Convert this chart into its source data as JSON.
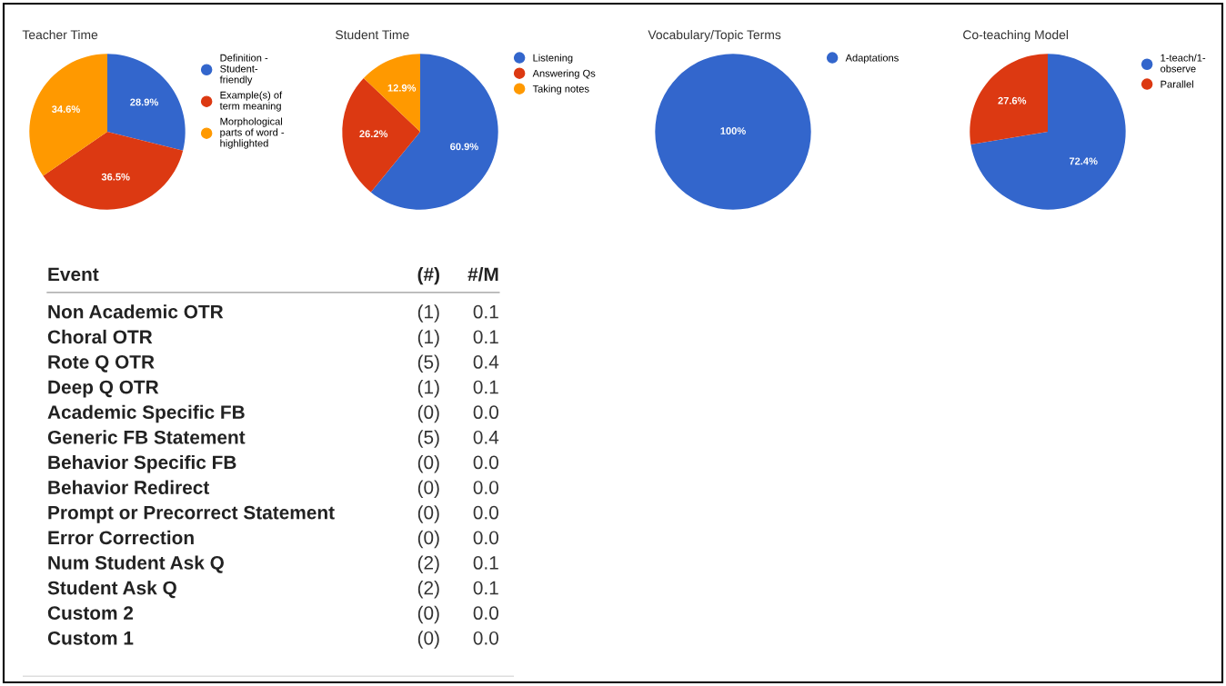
{
  "chart_data": [
    {
      "type": "pie",
      "title": "Teacher Time",
      "categories": [
        "Definition -\nStudent-\nfriendly",
        "Example(s) of\nterm meaning",
        "Morphological\nparts of word -\nhighlighted"
      ],
      "values": [
        28.9,
        36.5,
        34.6
      ],
      "value_labels": [
        "28.9%",
        "36.5%",
        "34.6%"
      ],
      "colors": [
        "#3366cc",
        "#dc3912",
        "#ff9900"
      ],
      "legend": "right"
    },
    {
      "type": "pie",
      "title": "Student Time",
      "categories": [
        "Listening",
        "Answering Qs",
        "Taking notes"
      ],
      "values": [
        60.9,
        26.2,
        12.9
      ],
      "value_labels": [
        "60.9%",
        "26.2%",
        "12.9%"
      ],
      "colors": [
        "#3366cc",
        "#dc3912",
        "#ff9900"
      ],
      "legend": "right"
    },
    {
      "type": "pie",
      "title": "Vocabulary/Topic Terms",
      "categories": [
        "Adaptations"
      ],
      "values": [
        100
      ],
      "value_labels": [
        "100%"
      ],
      "colors": [
        "#3366cc"
      ],
      "legend": "right"
    },
    {
      "type": "pie",
      "title": "Co-teaching Model",
      "categories": [
        "1-teach/1-\nobserve",
        "Parallel"
      ],
      "values": [
        72.4,
        27.6
      ],
      "value_labels": [
        "72.4%",
        "27.6%"
      ],
      "colors": [
        "#3366cc",
        "#dc3912"
      ],
      "legend": "right"
    },
    {
      "type": "other",
      "xlabel": "Event",
      "categories": [
        "Non Academic OTR",
        "Choral OTR",
        "Rote Q OTR",
        "Deep Q OTR",
        "Academic Specific FB",
        "Generic FB Statement",
        "Behavior Specific FB",
        "Behavior Redirect",
        "Prompt or Precorrect Statement",
        "Error Correction",
        "Num Student Ask Q",
        "Student Ask Q",
        "Custom 2",
        "Custom 1"
      ],
      "series": [
        {
          "name": "(#)",
          "values": [
            1,
            1,
            5,
            1,
            0,
            5,
            0,
            0,
            0,
            0,
            2,
            2,
            0,
            0
          ],
          "value_labels": [
            "(1)",
            "(1)",
            "(5)",
            "(1)",
            "(0)",
            "(5)",
            "(0)",
            "(0)",
            "(0)",
            "(0)",
            "(2)",
            "(2)",
            "(0)",
            "(0)"
          ]
        },
        {
          "name": "#/M",
          "values": [
            0.1,
            0.1,
            0.4,
            0.1,
            0.0,
            0.4,
            0.0,
            0.0,
            0.0,
            0.0,
            0.1,
            0.1,
            0.0,
            0.0
          ],
          "value_labels": [
            "0.1",
            "0.1",
            "0.4",
            "0.1",
            "0.0",
            "0.4",
            "0.0",
            "0.0",
            "0.0",
            "0.0",
            "0.1",
            "0.1",
            "0.0",
            "0.0"
          ]
        }
      ]
    }
  ]
}
